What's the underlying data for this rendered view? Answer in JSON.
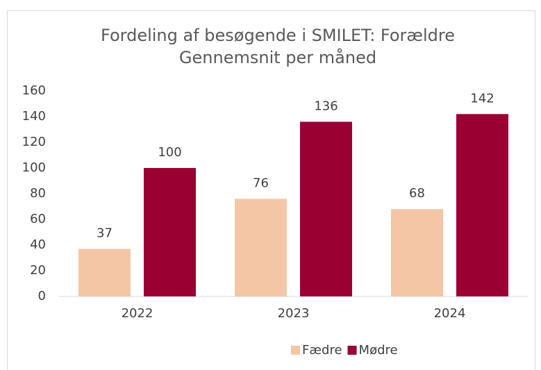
{
  "chart_data": {
    "type": "bar",
    "title": "Fordeling af besøgende i SMILET: Forældre",
    "subtitle": "Gennemsnit per måned",
    "categories": [
      "2022",
      "2023",
      "2024"
    ],
    "series": [
      {
        "name": "Fædre",
        "color": "#f5c6a5",
        "values": [
          37,
          76,
          68
        ]
      },
      {
        "name": "Mødre",
        "color": "#9b0032",
        "values": [
          100,
          136,
          142
        ]
      }
    ],
    "ylim": [
      0,
      160
    ],
    "yticks": [
      0,
      20,
      40,
      60,
      80,
      100,
      120,
      140,
      160
    ],
    "grid": false,
    "legend": "bottom"
  }
}
